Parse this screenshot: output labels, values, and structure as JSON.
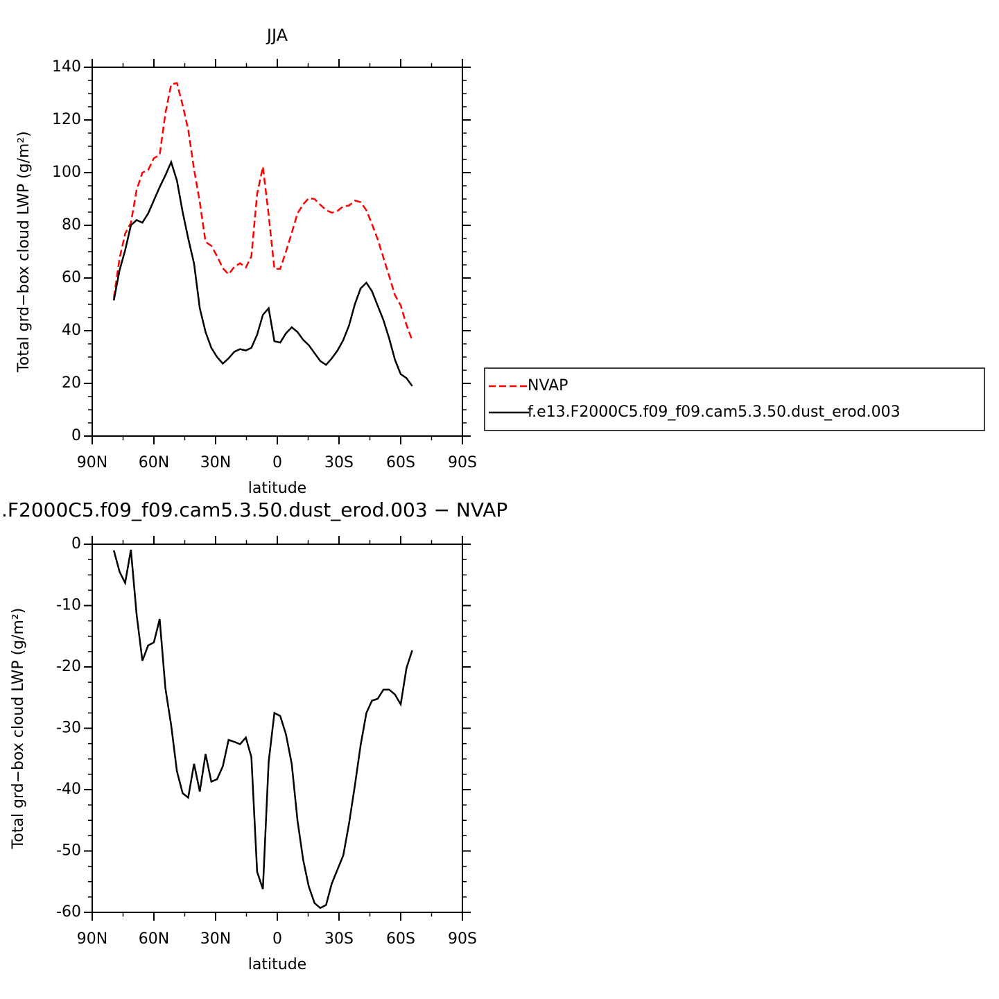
{
  "chart_data": [
    {
      "type": "line",
      "title": "JJA",
      "xlabel": "latitude",
      "ylabel": "Total grd−box cloud LWP (g/m²)",
      "x": [
        79.5,
        76.7,
        74.0,
        71.2,
        68.4,
        65.6,
        62.8,
        60.0,
        57.2,
        54.4,
        51.6,
        48.8,
        46.0,
        43.3,
        40.5,
        37.7,
        34.9,
        32.1,
        29.3,
        26.5,
        23.7,
        20.9,
        18.1,
        15.3,
        12.6,
        9.8,
        7.0,
        4.2,
        1.4,
        -1.4,
        -4.2,
        -7.0,
        -9.8,
        -12.6,
        -15.3,
        -18.1,
        -20.9,
        -23.7,
        -26.5,
        -29.3,
        -32.1,
        -34.9,
        -37.7,
        -40.5,
        -43.3,
        -46.0,
        -48.8,
        -51.6,
        -54.4,
        -57.2,
        -60.0,
        -62.8,
        -65.6
      ],
      "series": [
        {
          "name": "NVAP",
          "color": "#ff0000",
          "dash": true,
          "values": [
            52.5,
            67.5,
            76.8,
            80.9,
            93.5,
            100,
            101,
            105.5,
            106.7,
            122.5,
            133.5,
            134,
            125.6,
            116.3,
            101.3,
            88.8,
            73.7,
            72.2,
            68.3,
            63.7,
            61.4,
            64.2,
            65.6,
            64,
            68.2,
            91.9,
            102.2,
            84,
            63.5,
            63.5,
            70,
            77.1,
            84.5,
            88,
            90.3,
            90,
            87.8,
            85.8,
            84.8,
            85.5,
            87.2,
            87.5,
            89.4,
            88.8,
            85.7,
            80.5,
            74.7,
            67.7,
            60.7,
            53.5,
            49.6,
            42.2,
            36.3
          ]
        },
        {
          "name": "f.e13.F2000C5.f09_f09.cam5.3.50.dust_erod.003",
          "color": "#000000",
          "dash": false,
          "values": [
            51.5,
            63,
            70.5,
            80,
            82,
            81,
            84.5,
            89.5,
            94.5,
            99,
            104,
            97,
            85,
            75,
            65.5,
            48.5,
            39.5,
            33.5,
            30,
            27.5,
            29.5,
            32,
            33,
            32.5,
            33.5,
            38.5,
            46,
            48.5,
            36,
            35.5,
            39,
            41.3,
            39.5,
            36.5,
            34.5,
            31.5,
            28.5,
            27,
            29.5,
            32.5,
            36.5,
            42,
            50,
            56,
            58.2,
            55,
            49.5,
            44,
            37,
            29,
            23.5,
            22,
            19
          ]
        }
      ],
      "xlim": [
        90,
        -90
      ],
      "xticks": [
        {
          "value": 90,
          "label": "90N"
        },
        {
          "value": 60,
          "label": "60N"
        },
        {
          "value": 30,
          "label": "30N"
        },
        0,
        {
          "value": -30,
          "label": "30S"
        },
        {
          "value": -60,
          "label": "60S"
        },
        {
          "value": -90,
          "label": "90S"
        }
      ],
      "ylim": [
        0,
        140
      ],
      "yticks": [
        0,
        20,
        40,
        60,
        80,
        100,
        120,
        140
      ],
      "legend": "right"
    },
    {
      "type": "line",
      "title": ".F2000C5.f09_f09.cam5.3.50.dust_erod.003 − NVAP",
      "xlabel": "latitude",
      "ylabel": "Total grd−box cloud LWP (g/m²)",
      "x": [
        79.5,
        76.7,
        74.0,
        71.2,
        68.4,
        65.6,
        62.8,
        60.0,
        57.2,
        54.4,
        51.6,
        48.8,
        46.0,
        43.3,
        40.5,
        37.7,
        34.9,
        32.1,
        29.3,
        26.5,
        23.7,
        20.9,
        18.1,
        15.3,
        12.6,
        9.8,
        7.0,
        4.2,
        1.4,
        -1.4,
        -4.2,
        -7.0,
        -9.8,
        -12.6,
        -15.3,
        -18.1,
        -20.9,
        -23.7,
        -26.5,
        -29.3,
        -32.1,
        -34.9,
        -37.7,
        -40.5,
        -43.3,
        -46.0,
        -48.8,
        -51.6,
        -54.4,
        -57.2,
        -60.0,
        -62.8,
        -65.6
      ],
      "color": "#000000",
      "values": [
        -1,
        -4.5,
        -6.3,
        -0.9,
        -11.5,
        -19,
        -16.5,
        -16,
        -12.2,
        -23.5,
        -29.5,
        -37,
        -40.6,
        -41.3,
        -35.8,
        -40.3,
        -34.2,
        -38.7,
        -38.3,
        -36.2,
        -31.9,
        -32.2,
        -32.6,
        -31.5,
        -34.7,
        -53.4,
        -56.2,
        -35.5,
        -27.5,
        -28,
        -31,
        -35.8,
        -45,
        -51.5,
        -55.8,
        -58.5,
        -59.3,
        -58.8,
        -55.3,
        -53,
        -50.7,
        -45.5,
        -39.4,
        -32.8,
        -27.5,
        -25.5,
        -25.2,
        -23.7,
        -23.7,
        -24.5,
        -26.1,
        -20.2,
        -17.3
      ],
      "xlim": [
        90,
        -90
      ],
      "xticks": [
        {
          "value": 90,
          "label": "90N"
        },
        {
          "value": 60,
          "label": "60N"
        },
        {
          "value": 30,
          "label": "30N"
        },
        0,
        {
          "value": -30,
          "label": "30S"
        },
        {
          "value": -60,
          "label": "60S"
        },
        {
          "value": -90,
          "label": "90S"
        }
      ],
      "ylim": [
        -60,
        0
      ],
      "yticks": [
        -60,
        -50,
        -40,
        -30,
        -20,
        -10,
        0
      ]
    }
  ]
}
